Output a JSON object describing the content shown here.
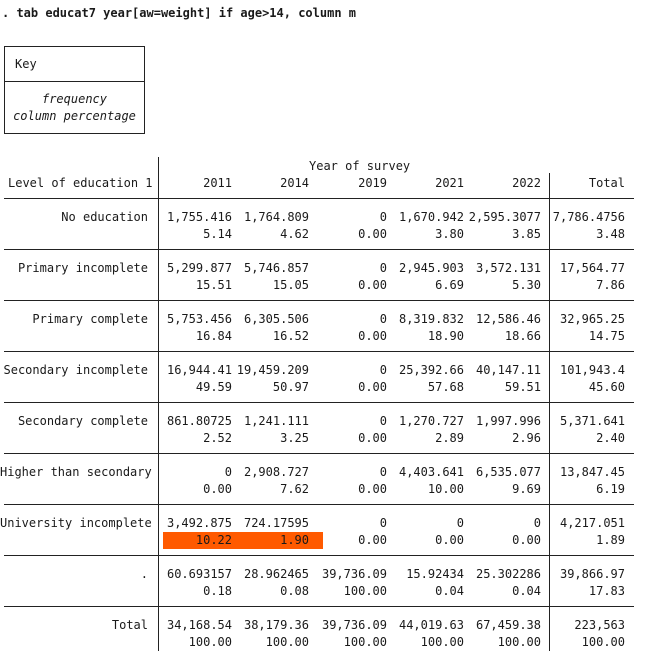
{
  "command": ". tab educat7 year[aw=weight] if age>14, column m",
  "key": {
    "title": "Key",
    "lines": [
      "frequency",
      "column percentage"
    ]
  },
  "table": {
    "col_super_header": "Year of survey",
    "row_header": "Level of education 1",
    "columns": [
      "2011",
      "2014",
      "2019",
      "2021",
      "2022",
      "Total"
    ],
    "rows": [
      {
        "label": "No education",
        "freq": [
          "1,755.416",
          "1,764.809",
          "0",
          "1,670.942",
          "2,595.3077",
          "7,786.4756"
        ],
        "pct": [
          "5.14",
          "4.62",
          "0.00",
          "3.80",
          "3.85",
          "3.48"
        ]
      },
      {
        "label": "Primary incomplete",
        "freq": [
          "5,299.877",
          "5,746.857",
          "0",
          "2,945.903",
          "3,572.131",
          "17,564.77"
        ],
        "pct": [
          "15.51",
          "15.05",
          "0.00",
          "6.69",
          "5.30",
          "7.86"
        ]
      },
      {
        "label": "Primary complete",
        "freq": [
          "5,753.456",
          "6,305.506",
          "0",
          "8,319.832",
          "12,586.46",
          "32,965.25"
        ],
        "pct": [
          "16.84",
          "16.52",
          "0.00",
          "18.90",
          "18.66",
          "14.75"
        ]
      },
      {
        "label": "Secondary incomplete",
        "freq": [
          "16,944.41",
          "19,459.209",
          "0",
          "25,392.66",
          "40,147.11",
          "101,943.4"
        ],
        "pct": [
          "49.59",
          "50.97",
          "0.00",
          "57.68",
          "59.51",
          "45.60"
        ]
      },
      {
        "label": "Secondary complete",
        "freq": [
          "861.80725",
          "1,241.111",
          "0",
          "1,270.727",
          "1,997.996",
          "5,371.641"
        ],
        "pct": [
          "2.52",
          "3.25",
          "0.00",
          "2.89",
          "2.96",
          "2.40"
        ]
      },
      {
        "label": "Higher than secondary",
        "freq": [
          "0",
          "2,908.727",
          "0",
          "4,403.641",
          "6,535.077",
          "13,847.45"
        ],
        "pct": [
          "0.00",
          "7.62",
          "0.00",
          "10.00",
          "9.69",
          "6.19"
        ]
      },
      {
        "label": "University incomplete",
        "freq": [
          "3,492.875",
          "724.17595",
          "0",
          "0",
          "0",
          "4,217.051"
        ],
        "pct": [
          "10.22",
          "1.90",
          "0.00",
          "0.00",
          "0.00",
          "1.89"
        ]
      },
      {
        "label": ".",
        "freq": [
          "60.693157",
          "28.962465",
          "39,736.09",
          "15.92434",
          "25.302286",
          "39,866.97"
        ],
        "pct": [
          "0.18",
          "0.08",
          "100.00",
          "0.04",
          "0.04",
          "17.83"
        ]
      },
      {
        "label": "Total",
        "freq": [
          "34,168.54",
          "38,179.36",
          "39,736.09",
          "44,019.63",
          "67,459.38",
          "223,563"
        ],
        "pct": [
          "100.00",
          "100.00",
          "100.00",
          "100.00",
          "100.00",
          "100.00"
        ]
      }
    ]
  },
  "highlight_color": "#ff5a00"
}
